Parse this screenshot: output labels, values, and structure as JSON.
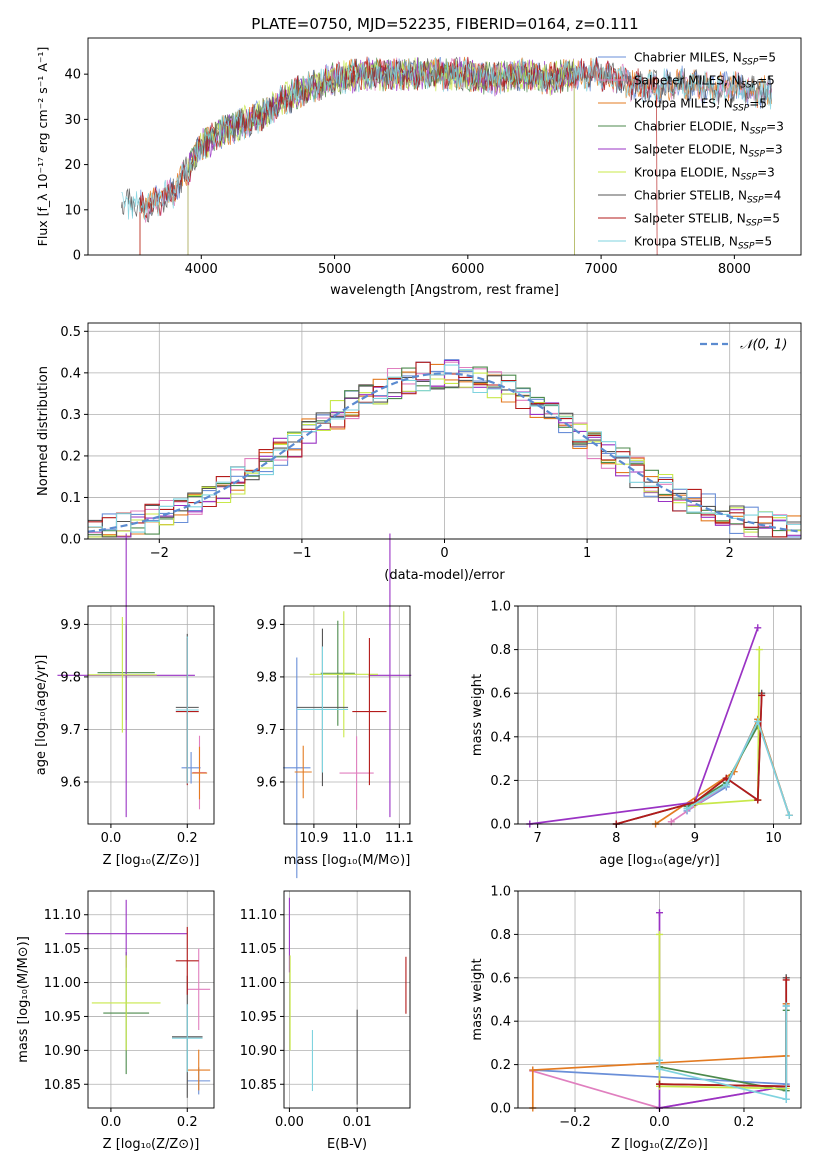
{
  "title": "PLATE=0750, MJD=52235, FIBERID=0164, z=0.111",
  "colors": {
    "Chabrier MILES": "#6a8fd8",
    "Salpeter MILES": "#e07fbf",
    "Kroupa MILES": "#e37b22",
    "Chabrier ELODIE": "#4c8a4c",
    "Salpeter ELODIE": "#9a33c4",
    "Kroupa ELODIE": "#c8e84a",
    "Chabrier STELIB": "#555555",
    "Salpeter STELIB": "#b31b1b",
    "Kroupa STELIB": "#7fd3df",
    "normal": "#5b8bd0"
  },
  "chart_data": [
    {
      "id": "spectrum",
      "type": "line",
      "xlabel": "wavelength [Angstrom, rest frame]",
      "ylabel": "Flux [f_λ 10⁻¹⁷ erg cm⁻² s⁻¹ A⁻¹]",
      "xlim": [
        3150,
        8500
      ],
      "ylim": [
        0,
        48
      ],
      "xticks": [
        "4000",
        "5000",
        "6000",
        "7000",
        "8000"
      ],
      "yticks": [
        "0",
        "10",
        "20",
        "30",
        "40"
      ],
      "grid": false,
      "legend_position": "top-right",
      "continuum_x": [
        3400,
        3600,
        3800,
        4000,
        4200,
        4400,
        4600,
        4800,
        5000,
        5200,
        5400,
        5600,
        5800,
        6000,
        6200,
        6400,
        6600,
        6800,
        7000,
        7200,
        7400,
        7600,
        7800,
        8000,
        8200,
        8280
      ],
      "continuum_y": [
        11,
        11,
        14,
        24,
        28,
        30,
        34,
        37,
        39,
        40,
        40,
        40,
        40,
        40,
        39,
        40,
        39,
        40,
        40,
        38,
        37,
        38,
        37,
        37,
        36,
        36
      ],
      "series": [
        {
          "name": "Chabrier MILES",
          "nssp": "5",
          "x_start": 3540
        },
        {
          "name": "Salpeter MILES",
          "nssp": "5",
          "x_start": 3540
        },
        {
          "name": "Kroupa MILES",
          "nssp": "5",
          "x_start": 3540
        },
        {
          "name": "Chabrier ELODIE",
          "nssp": "3",
          "x_start": 3900,
          "x_end": 6800
        },
        {
          "name": "Salpeter ELODIE",
          "nssp": "3",
          "x_start": 3900,
          "x_end": 6800
        },
        {
          "name": "Kroupa ELODIE",
          "nssp": "3",
          "x_start": 3900,
          "x_end": 6800
        },
        {
          "name": "Chabrier STELIB",
          "nssp": "4",
          "x_start": 3400
        },
        {
          "name": "Salpeter STELIB",
          "nssp": "5",
          "x_start": 3540,
          "x_end": 7420
        },
        {
          "name": "Kroupa STELIB",
          "nssp": "5",
          "x_start": 3400
        }
      ]
    },
    {
      "id": "residuals",
      "type": "step",
      "xlabel": "(data-model)/error",
      "ylabel": "Normed distribution",
      "xlim": [
        -2.5,
        2.5
      ],
      "ylim": [
        0,
        0.52
      ],
      "xticks": [
        "−2",
        "−1",
        "0",
        "1",
        "2"
      ],
      "yticks": [
        "0.0",
        "0.1",
        "0.2",
        "0.3",
        "0.4",
        "0.5"
      ],
      "grid": true,
      "legend_position": "top-right",
      "legend_label": "𝒩(0, 1)",
      "bin_width": 0.1,
      "series_count": 9
    },
    {
      "id": "age-vs-Z",
      "type": "scatter",
      "xlabel": "Z [log₁₀(Z/Z⊙)]",
      "ylabel": "age  [log₁₀(age/yr)]",
      "xlim": [
        -0.06,
        0.27
      ],
      "ylim": [
        9.52,
        9.935
      ],
      "xticks": [
        "0.0",
        "0.2"
      ],
      "yticks": [
        "9.6",
        "9.7",
        "9.8",
        "9.9"
      ],
      "grid": true,
      "points": [
        {
          "series": "Chabrier MILES",
          "x": 0.21,
          "y": 9.627,
          "xerr": 0.025,
          "yerr": 0.03
        },
        {
          "series": "Salpeter MILES",
          "x": 0.232,
          "y": 9.618,
          "xerr": 0.018,
          "yerr": 0.07
        },
        {
          "series": "Kroupa MILES",
          "x": 0.232,
          "y": 9.617,
          "xerr": 0.02,
          "yerr": 0.05
        },
        {
          "series": "Chabrier ELODIE",
          "x": 0.04,
          "y": 9.808,
          "xerr": 0.075,
          "yerr": 0.09
        },
        {
          "series": "Salpeter ELODIE",
          "x": 0.04,
          "y": 9.803,
          "xerr": 0.18,
          "yerr": 0.27
        },
        {
          "series": "Kroupa ELODIE",
          "x": 0.03,
          "y": 9.804,
          "xerr": 0.09,
          "yerr": 0.11
        },
        {
          "series": "Chabrier STELIB",
          "x": 0.2,
          "y": 9.742,
          "xerr": 0.03,
          "yerr": 0.14
        },
        {
          "series": "Salpeter STELIB",
          "x": 0.2,
          "y": 9.734,
          "xerr": 0.03,
          "yerr": 0.14
        },
        {
          "series": "Kroupa STELIB",
          "x": 0.2,
          "y": 9.737,
          "xerr": 0.03,
          "yerr": 0.14
        }
      ]
    },
    {
      "id": "age-vs-mass",
      "type": "scatter",
      "xlabel": "mass [log₁₀(M/M⊙)]",
      "ylabel": "",
      "xlim": [
        10.83,
        11.125
      ],
      "ylim": [
        9.52,
        9.935
      ],
      "xticks": [
        "10.9",
        "11.0",
        "11.1"
      ],
      "yticks": [
        "9.6",
        "9.7",
        "9.8",
        "9.9"
      ],
      "grid": true,
      "points": [
        {
          "series": "Chabrier MILES",
          "x": 10.86,
          "y": 9.627,
          "xerr": 0.032,
          "yerr": 0.21
        },
        {
          "series": "Salpeter MILES",
          "x": 11.0,
          "y": 9.617,
          "xerr": 0.04,
          "yerr": 0.07
        },
        {
          "series": "Kroupa MILES",
          "x": 10.875,
          "y": 9.619,
          "xerr": 0.02,
          "yerr": 0.05
        },
        {
          "series": "Chabrier ELODIE",
          "x": 10.956,
          "y": 9.807,
          "xerr": 0.04,
          "yerr": 0.1
        },
        {
          "series": "Salpeter ELODIE",
          "x": 11.078,
          "y": 9.803,
          "xerr": 0.05,
          "yerr": 0.27
        },
        {
          "series": "Kroupa ELODIE",
          "x": 10.97,
          "y": 9.805,
          "xerr": 0.08,
          "yerr": 0.12
        },
        {
          "series": "Chabrier STELIB",
          "x": 10.92,
          "y": 9.742,
          "xerr": 0.06,
          "yerr": 0.15
        },
        {
          "series": "Salpeter STELIB",
          "x": 11.03,
          "y": 9.734,
          "xerr": 0.04,
          "yerr": 0.14
        },
        {
          "series": "Kroupa STELIB",
          "x": 10.92,
          "y": 9.738,
          "xerr": 0.06,
          "yerr": 0.12
        }
      ]
    },
    {
      "id": "weight-vs-age",
      "type": "line",
      "xlabel": "age  [log₁₀(age/yr)]",
      "ylabel": "mass weight",
      "xlim": [
        6.75,
        10.35
      ],
      "ylim": [
        0,
        1.0
      ],
      "xticks": [
        "7",
        "8",
        "9",
        "10"
      ],
      "yticks": [
        "0.0",
        "0.2",
        "0.4",
        "0.6",
        "0.8",
        "1.0"
      ],
      "grid": true,
      "series": [
        {
          "name": "Chabrier MILES",
          "x": [
            8.9,
            9.4,
            9.8,
            10.2
          ],
          "y": [
            0.06,
            0.17,
            0.48,
            0.04
          ]
        },
        {
          "name": "Salpeter MILES",
          "x": [
            8.7,
            9.4,
            9.8,
            10.2
          ],
          "y": [
            0.01,
            0.18,
            0.47,
            0.04
          ]
        },
        {
          "name": "Kroupa MILES",
          "x": [
            8.5,
            9.5,
            9.8,
            10.2
          ],
          "y": [
            0.0,
            0.24,
            0.48,
            0.04
          ]
        },
        {
          "name": "Chabrier ELODIE",
          "x": [
            8.9,
            9.4,
            9.8
          ],
          "y": [
            0.08,
            0.19,
            0.45
          ]
        },
        {
          "name": "Salpeter ELODIE",
          "x": [
            6.9,
            9.0,
            9.8
          ],
          "y": [
            0.0,
            0.1,
            0.9
          ]
        },
        {
          "name": "Kroupa ELODIE",
          "x": [
            9.0,
            9.8,
            9.82
          ],
          "y": [
            0.09,
            0.11,
            0.8
          ]
        },
        {
          "name": "Chabrier STELIB",
          "x": [
            8.0,
            9.0,
            9.4,
            9.8,
            9.85
          ],
          "y": [
            0.0,
            0.1,
            0.21,
            0.11,
            0.6
          ]
        },
        {
          "name": "Salpeter STELIB",
          "x": [
            8.0,
            9.0,
            9.4,
            9.8,
            9.85
          ],
          "y": [
            0.0,
            0.1,
            0.21,
            0.11,
            0.59
          ]
        },
        {
          "name": "Kroupa STELIB",
          "x": [
            8.9,
            9.4,
            9.8,
            10.2
          ],
          "y": [
            0.07,
            0.18,
            0.47,
            0.04
          ]
        }
      ]
    },
    {
      "id": "mass-vs-Z",
      "type": "scatter",
      "xlabel": "Z [log₁₀(Z/Z⊙)]",
      "ylabel": "mass [log₁₀(M/M⊙)]",
      "xlim": [
        -0.06,
        0.27
      ],
      "ylim": [
        10.815,
        11.135
      ],
      "xticks": [
        "0.0",
        "0.2"
      ],
      "yticks": [
        "10.85",
        "10.90",
        "10.95",
        "11.00",
        "11.05",
        "11.10"
      ],
      "grid": true,
      "points": [
        {
          "series": "Chabrier MILES",
          "x": 0.23,
          "y": 10.855,
          "xerr": 0.03,
          "yerr": 0.02
        },
        {
          "series": "Salpeter MILES",
          "x": 0.23,
          "y": 10.99,
          "xerr": 0.03,
          "yerr": 0.06
        },
        {
          "series": "Kroupa MILES",
          "x": 0.23,
          "y": 10.871,
          "xerr": 0.03,
          "yerr": 0.03
        },
        {
          "series": "Chabrier ELODIE",
          "x": 0.04,
          "y": 10.955,
          "xerr": 0.06,
          "yerr": 0.09
        },
        {
          "series": "Salpeter ELODIE",
          "x": 0.04,
          "y": 11.072,
          "xerr": 0.16,
          "yerr": 0.05
        },
        {
          "series": "Kroupa ELODIE",
          "x": 0.04,
          "y": 10.97,
          "xerr": 0.09,
          "yerr": 0.07
        },
        {
          "series": "Chabrier STELIB",
          "x": 0.2,
          "y": 10.92,
          "xerr": 0.04,
          "yerr": 0.09
        },
        {
          "series": "Salpeter STELIB",
          "x": 0.2,
          "y": 11.032,
          "xerr": 0.03,
          "yerr": 0.05
        },
        {
          "series": "Kroupa STELIB",
          "x": 0.2,
          "y": 10.918,
          "xerr": 0.04,
          "yerr": 0.05
        }
      ]
    },
    {
      "id": "mass-vs-EBV",
      "type": "scatter",
      "xlabel": "E(B-V)",
      "ylabel": "",
      "xlim": [
        -0.0008,
        0.0178
      ],
      "ylim": [
        10.815,
        11.135
      ],
      "xticks": [
        "0.00",
        "0.01"
      ],
      "yticks": [
        "10.85",
        "10.90",
        "10.95",
        "11.00",
        "11.05",
        "11.10"
      ],
      "grid": true,
      "points": [
        {
          "series": "Salpeter ELODIE",
          "x": 0.0,
          "y": 11.07,
          "yerr": 0.055
        },
        {
          "series": "Kroupa ELODIE",
          "x": 0.0001,
          "y": 10.97,
          "yerr": 0.07
        },
        {
          "series": "Kroupa STELIB",
          "x": 0.0034,
          "y": 10.885,
          "yerr": 0.045
        },
        {
          "series": "Chabrier STELIB",
          "x": 0.01,
          "y": 10.89,
          "yerr": 0.07
        },
        {
          "series": "Salpeter STELIB",
          "x": 0.0172,
          "y": 10.996,
          "yerr": 0.042
        }
      ]
    },
    {
      "id": "weight-vs-Z",
      "type": "line",
      "xlabel": "Z [log₁₀(Z/Z⊙)]",
      "ylabel": "mass weight",
      "xlim": [
        -0.335,
        0.335
      ],
      "ylim": [
        0,
        1.0
      ],
      "xticks": [
        "−0.2",
        "0.0",
        "0.2"
      ],
      "yticks": [
        "0.0",
        "0.2",
        "0.4",
        "0.6",
        "0.8",
        "1.0"
      ],
      "grid": true,
      "series": [
        {
          "name": "Chabrier MILES",
          "x": [
            -0.3,
            0.3,
            0.3,
            0.3
          ],
          "y": [
            0.175,
            0.11,
            0.47,
            0.04
          ]
        },
        {
          "name": "Salpeter MILES",
          "x": [
            -0.3,
            0.0,
            0.3,
            0.3
          ],
          "y": [
            0.17,
            0.0,
            0.1,
            0.48
          ]
        },
        {
          "name": "Kroupa MILES",
          "x": [
            -0.3,
            -0.3,
            0.3,
            0.3
          ],
          "y": [
            0.0,
            0.175,
            0.24,
            0.48
          ]
        },
        {
          "name": "Chabrier ELODIE",
          "x": [
            0.0,
            0.3,
            0.3
          ],
          "y": [
            0.19,
            0.08,
            0.45
          ]
        },
        {
          "name": "Salpeter ELODIE",
          "x": [
            0.0,
            0.0,
            0.3
          ],
          "y": [
            0.9,
            0.0,
            0.1
          ]
        },
        {
          "name": "Kroupa ELODIE",
          "x": [
            0.0,
            0.0,
            0.3
          ],
          "y": [
            0.8,
            0.1,
            0.09
          ]
        },
        {
          "name": "Chabrier STELIB",
          "x": [
            0.0,
            0.3,
            0.3
          ],
          "y": [
            0.11,
            0.1,
            0.6
          ]
        },
        {
          "name": "Salpeter STELIB",
          "x": [
            0.0,
            0.3,
            0.3
          ],
          "y": [
            0.11,
            0.1,
            0.59
          ]
        },
        {
          "name": "Kroupa STELIB",
          "x": [
            0.0,
            0.0,
            0.3,
            0.3
          ],
          "y": [
            0.22,
            0.18,
            0.04,
            0.47
          ]
        }
      ]
    }
  ]
}
